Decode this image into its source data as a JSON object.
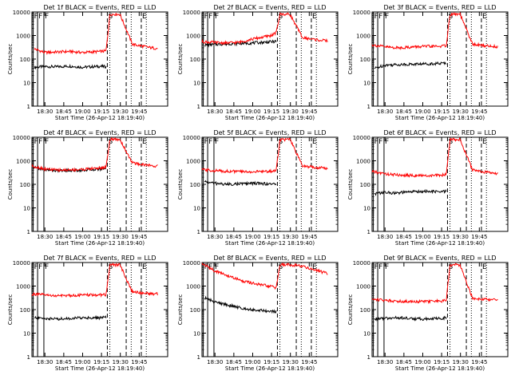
{
  "start_time_label": "Start Time (26-Apr-12 18:19:40)",
  "ylabel": "Counts/sec",
  "x_ticks": [
    "18:30",
    "18:45",
    "19:00",
    "19:15",
    "19:30",
    "19:45"
  ],
  "x_range_minutes": [
    0,
    108
  ],
  "x_origin_time": "18:19:40",
  "y_ticks": [
    "1",
    "10",
    "100",
    "1000",
    "10000"
  ],
  "ylim": [
    1,
    10000
  ],
  "colors": {
    "events": "#000000",
    "lld": "#ff0000",
    "axes": "#000000"
  },
  "chart_data": [
    {
      "type": "line",
      "title": "Det 1f BLACK = Events, RED = LLD",
      "solid_markers": [
        1,
        4.5,
        9.5
      ],
      "solid_labels": [
        "F",
        "F",
        "F"
      ],
      "dashed_markers": [
        60,
        75,
        87
      ],
      "dashed_labels": [
        "S",
        "",
        "E"
      ],
      "dotted_markers": [
        62,
        79,
        91
      ],
      "series": [
        {
          "name": "Events",
          "x": [
            2,
            10,
            20,
            30,
            40,
            55,
            59
          ],
          "y": [
            45,
            48,
            47,
            50,
            45,
            49,
            47
          ]
        },
        {
          "name": "LLD",
          "x": [
            2,
            10,
            20,
            30,
            40,
            55,
            59,
            62,
            70,
            80,
            95,
            100
          ],
          "y": [
            270,
            190,
            200,
            210,
            190,
            210,
            220,
            8000,
            8000,
            420,
            300,
            280
          ]
        }
      ]
    },
    {
      "type": "line",
      "title": "Det 2f BLACK = Events, RED = LLD",
      "solid_markers": [
        1,
        4.5,
        9.5
      ],
      "solid_labels": [
        "F",
        "F",
        "F"
      ],
      "dashed_markers": [
        60,
        75,
        87
      ],
      "dashed_labels": [
        "S",
        "",
        "E"
      ],
      "dotted_markers": [
        62,
        79,
        91
      ],
      "series": [
        {
          "name": "Events",
          "x": [
            2,
            10,
            20,
            30,
            40,
            55,
            59
          ],
          "y": [
            390,
            420,
            440,
            460,
            480,
            540,
            560
          ]
        },
        {
          "name": "LLD",
          "x": [
            0,
            10,
            20,
            30,
            40,
            55,
            59,
            62,
            70,
            80,
            95,
            100
          ],
          "y": [
            550,
            500,
            480,
            520,
            700,
            1000,
            1300,
            8000,
            8000,
            800,
            620,
            600
          ]
        }
      ]
    },
    {
      "type": "line",
      "title": "Det 3f BLACK = Events, RED = LLD",
      "solid_markers": [
        1,
        4.5,
        9.5
      ],
      "solid_labels": [
        "F",
        "F",
        "F"
      ],
      "dashed_markers": [
        60,
        75,
        87
      ],
      "dashed_labels": [
        "S",
        "",
        "E"
      ],
      "dotted_markers": [
        62,
        79,
        91
      ],
      "series": [
        {
          "name": "Events",
          "x": [
            2,
            10,
            20,
            30,
            40,
            55,
            59
          ],
          "y": [
            40,
            55,
            58,
            60,
            62,
            65,
            68
          ]
        },
        {
          "name": "LLD",
          "x": [
            0,
            10,
            20,
            30,
            40,
            55,
            59,
            62,
            70,
            80,
            95,
            100
          ],
          "y": [
            400,
            330,
            300,
            320,
            340,
            350,
            370,
            8000,
            8000,
            420,
            350,
            330
          ]
        }
      ]
    },
    {
      "type": "line",
      "title": "Det 4f BLACK = Events, RED = LLD",
      "solid_markers": [
        1,
        4.5,
        9.5
      ],
      "solid_labels": [
        "F",
        "F",
        "F"
      ],
      "dashed_markers": [
        60,
        75,
        87
      ],
      "dashed_labels": [
        "S",
        "",
        "E"
      ],
      "dotted_markers": [
        62,
        79,
        91
      ],
      "series": [
        {
          "name": "Events",
          "x": [
            0,
            10,
            20,
            30,
            40,
            55,
            59
          ],
          "y": [
            550,
            420,
            380,
            390,
            400,
            450,
            500
          ]
        },
        {
          "name": "LLD",
          "x": [
            0,
            10,
            20,
            30,
            40,
            55,
            59,
            62,
            70,
            80,
            95,
            100
          ],
          "y": [
            600,
            450,
            400,
            410,
            430,
            500,
            550,
            8000,
            8000,
            800,
            620,
            600
          ]
        }
      ]
    },
    {
      "type": "line",
      "title": "Det 5f BLACK = Events, RED = LLD",
      "solid_markers": [
        1,
        4.5,
        9.5
      ],
      "solid_labels": [
        "F",
        "F",
        "F"
      ],
      "dashed_markers": [
        60,
        75,
        87
      ],
      "dashed_labels": [
        "S",
        "",
        "E"
      ],
      "dotted_markers": [
        62,
        79,
        91
      ],
      "series": [
        {
          "name": "Events",
          "x": [
            2,
            10,
            20,
            30,
            40,
            55,
            59
          ],
          "y": [
            130,
            110,
            100,
            105,
            110,
            105,
            100
          ]
        },
        {
          "name": "LLD",
          "x": [
            0,
            10,
            20,
            30,
            40,
            55,
            59,
            62,
            70,
            80,
            95,
            100
          ],
          "y": [
            420,
            380,
            360,
            350,
            340,
            360,
            380,
            8000,
            8000,
            600,
            500,
            480
          ]
        }
      ]
    },
    {
      "type": "line",
      "title": "Det 6f BLACK = Events, RED = LLD",
      "solid_markers": [
        1,
        4.5,
        9.5
      ],
      "solid_labels": [
        "F",
        "F",
        "F"
      ],
      "dashed_markers": [
        60,
        75,
        87
      ],
      "dashed_labels": [
        "S",
        "",
        "E"
      ],
      "dotted_markers": [
        62,
        79,
        91
      ],
      "series": [
        {
          "name": "Events",
          "x": [
            2,
            10,
            20,
            30,
            40,
            55,
            59
          ],
          "y": [
            40,
            45,
            42,
            48,
            50,
            48,
            50
          ]
        },
        {
          "name": "LLD",
          "x": [
            0,
            10,
            20,
            30,
            40,
            55,
            59,
            62,
            70,
            80,
            95,
            100
          ],
          "y": [
            350,
            280,
            250,
            240,
            230,
            240,
            260,
            8000,
            8000,
            400,
            300,
            290
          ]
        }
      ]
    },
    {
      "type": "line",
      "title": "Det 7f BLACK = Events, RED = LLD",
      "solid_markers": [
        1,
        4.5,
        9.5
      ],
      "solid_labels": [
        "F",
        "F",
        "F"
      ],
      "dashed_markers": [
        60,
        75,
        87
      ],
      "dashed_labels": [
        "S",
        "",
        "E"
      ],
      "dotted_markers": [
        62,
        79,
        91
      ],
      "series": [
        {
          "name": "Events",
          "x": [
            2,
            10,
            20,
            30,
            40,
            55,
            59
          ],
          "y": [
            45,
            42,
            40,
            42,
            45,
            45,
            48
          ]
        },
        {
          "name": "LLD",
          "x": [
            0,
            10,
            20,
            30,
            40,
            55,
            59,
            62,
            70,
            80,
            95,
            100
          ],
          "y": [
            450,
            420,
            380,
            400,
            410,
            420,
            430,
            8000,
            8000,
            550,
            480,
            460
          ]
        }
      ]
    },
    {
      "type": "line",
      "title": "Det 8f BLACK = Events, RED = LLD",
      "solid_markers": [
        1,
        4.5,
        9.5
      ],
      "solid_labels": [
        "F",
        "F",
        "F"
      ],
      "dashed_markers": [
        60,
        75,
        87
      ],
      "dashed_labels": [
        "S",
        "",
        "E"
      ],
      "dotted_markers": [
        62,
        79,
        91
      ],
      "series": [
        {
          "name": "Events",
          "x": [
            2,
            10,
            20,
            30,
            40,
            55,
            59
          ],
          "y": [
            320,
            210,
            160,
            120,
            100,
            85,
            80
          ]
        },
        {
          "name": "LLD",
          "x": [
            0,
            10,
            20,
            30,
            40,
            55,
            59,
            62,
            70,
            80,
            95,
            100
          ],
          "y": [
            9000,
            4500,
            2800,
            1800,
            1300,
            950,
            850,
            8000,
            8000,
            7000,
            4000,
            3500
          ]
        }
      ]
    },
    {
      "type": "line",
      "title": "Det 9f BLACK = Events, RED = LLD",
      "solid_markers": [
        1,
        4.5,
        9.5
      ],
      "solid_labels": [
        "F",
        "F",
        "F"
      ],
      "dashed_markers": [
        60,
        75,
        87
      ],
      "dashed_labels": [
        "S",
        "",
        "E"
      ],
      "dotted_markers": [
        62,
        79,
        91
      ],
      "series": [
        {
          "name": "Events",
          "x": [
            2,
            10,
            20,
            30,
            40,
            55,
            59
          ],
          "y": [
            40,
            42,
            45,
            42,
            40,
            42,
            45
          ]
        },
        {
          "name": "LLD",
          "x": [
            0,
            10,
            20,
            30,
            40,
            55,
            59,
            62,
            70,
            80,
            95,
            100
          ],
          "y": [
            280,
            250,
            230,
            220,
            220,
            230,
            240,
            8000,
            8000,
            300,
            260,
            250
          ]
        }
      ]
    }
  ]
}
